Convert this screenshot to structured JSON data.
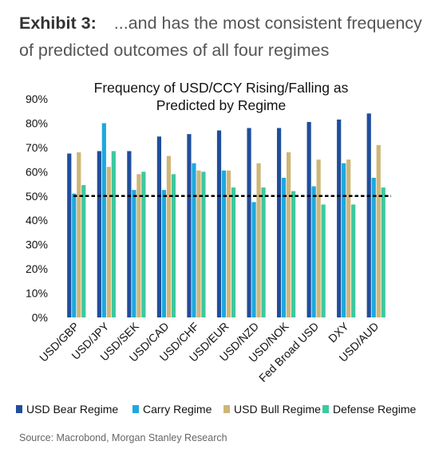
{
  "exhibit": {
    "label": "Exhibit 3:",
    "headline": "...and has the most consistent frequency of predicted outcomes of all four regimes"
  },
  "source": "Source: Macrobond, Morgan Stanley Research",
  "chart_data": {
    "type": "bar",
    "title": "Frequency of USD/CCY Rising/Falling as Predicted by Regime",
    "title_lines": [
      "Frequency of USD/CCY Rising/Falling as",
      "Predicted by Regime"
    ],
    "xlabel": "",
    "ylabel": "",
    "ylim": [
      0,
      90
    ],
    "yticks": [
      "0%",
      "10%",
      "20%",
      "30%",
      "40%",
      "50%",
      "60%",
      "70%",
      "80%",
      "90%"
    ],
    "grid": false,
    "legend_position": "bottom",
    "reference_line": {
      "value": 50,
      "style": "dashed",
      "color": "#000000"
    },
    "categories": [
      "USD/GBP",
      "USD/JPY",
      "USD/SEK",
      "USD/CAD",
      "USD/CHF",
      "USD/EUR",
      "USD/NZD",
      "USD/NOK",
      "Fed Broad USD",
      "DXY",
      "USD/AUD"
    ],
    "series": [
      {
        "name": "USD Bear Regime",
        "color": "#1f4e9c",
        "values": [
          67.5,
          68.5,
          68.5,
          74.5,
          75.5,
          77,
          78,
          78,
          80.5,
          81.5,
          84
        ]
      },
      {
        "name": "Carry Regime",
        "color": "#1ea7e0",
        "values": [
          51,
          80,
          52.5,
          52.5,
          63.5,
          60.5,
          47.5,
          57.5,
          54,
          63.5,
          57.5
        ]
      },
      {
        "name": "USD Bull Regime",
        "color": "#cdb677",
        "values": [
          68,
          62,
          59,
          66.5,
          60.5,
          60.5,
          63.5,
          68,
          65,
          65,
          71
        ]
      },
      {
        "name": "Defense Regime",
        "color": "#3cc9a0",
        "values": [
          54.5,
          68.5,
          60,
          59,
          60,
          53.5,
          53.5,
          52,
          46.5,
          46.5,
          53.5
        ]
      }
    ]
  }
}
